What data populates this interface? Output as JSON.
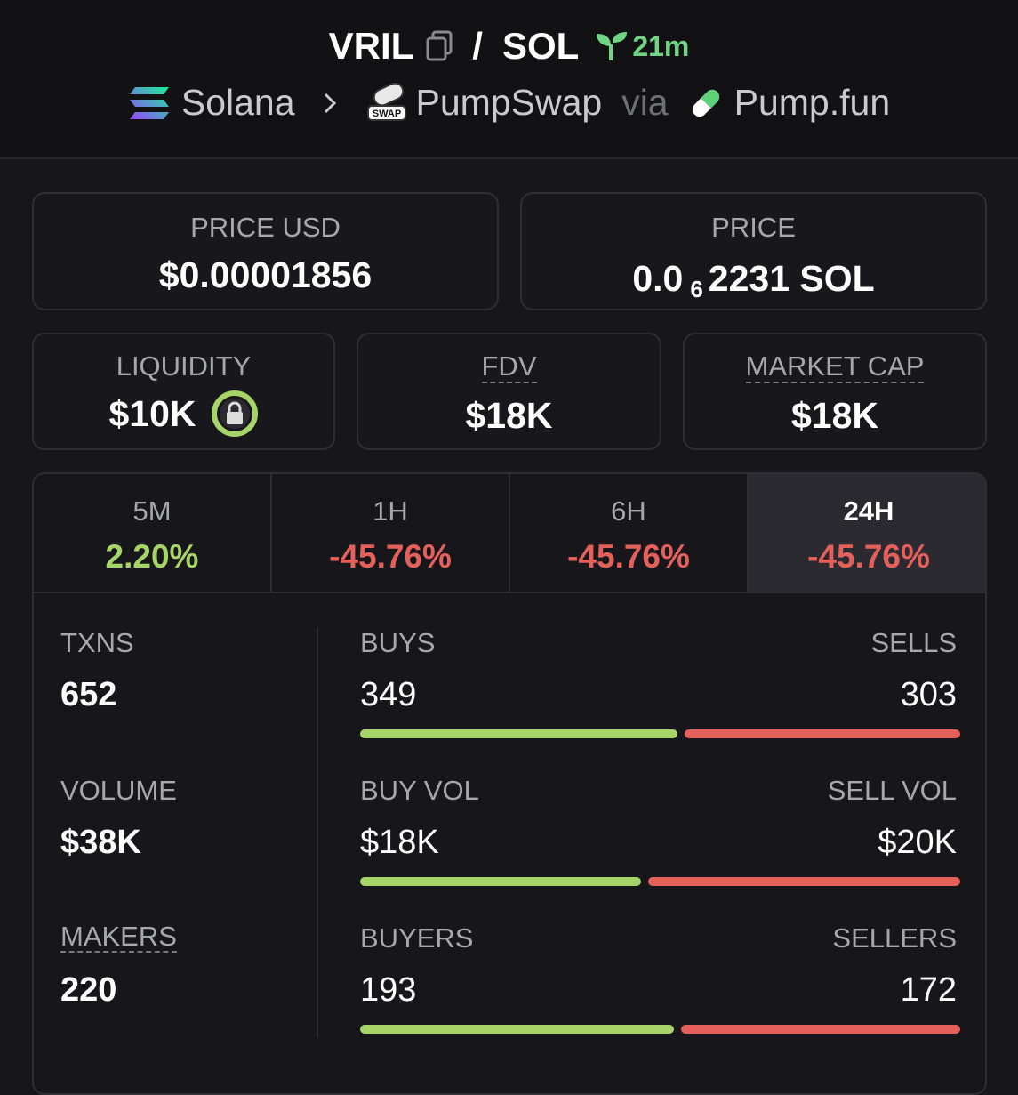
{
  "header": {
    "base": "VRIL",
    "separator": "/",
    "quote": "SOL",
    "age": "21m",
    "chain": "Solana",
    "dex": "PumpSwap",
    "via": "via",
    "launchpad": "Pump.fun"
  },
  "price_cards": [
    {
      "label": "PRICE USD",
      "value": "$0.00001856"
    },
    {
      "label": "PRICE",
      "value": "0.0",
      "subscript": "6",
      "rest": "2231 SOL"
    }
  ],
  "metric_cards": [
    {
      "label": "LIQUIDITY",
      "value": "$10K"
    },
    {
      "label": "FDV",
      "value": "$18K"
    },
    {
      "label": "MARKET CAP",
      "value": "$18K"
    }
  ],
  "tabs": [
    {
      "label": "5M",
      "change": "2.20%"
    },
    {
      "label": "1H",
      "change": "-45.76%"
    },
    {
      "label": "6H",
      "change": "-45.76%"
    },
    {
      "label": "24H",
      "change": "-45.76%"
    }
  ],
  "active_tab": 3,
  "stats": {
    "left": [
      {
        "label": "TXNS",
        "value": 652
      },
      {
        "label": "VOLUME",
        "value": "$38K"
      },
      {
        "label": "MAKERS",
        "value": 220
      }
    ],
    "rows": [
      {
        "left_label": "BUYS",
        "left_value": 349,
        "right_label": "SELLS",
        "right_value": 303
      },
      {
        "left_label": "BUY VOL",
        "left_value": {
          "value": 18000,
          "label": "$18K"
        },
        "right_label": "SELL VOL",
        "right_value": {
          "value": 20000,
          "label": "$20K"
        }
      },
      {
        "left_label": "BUYERS",
        "left_value": 193,
        "right_label": "SELLERS",
        "right_value": 172
      }
    ]
  }
}
